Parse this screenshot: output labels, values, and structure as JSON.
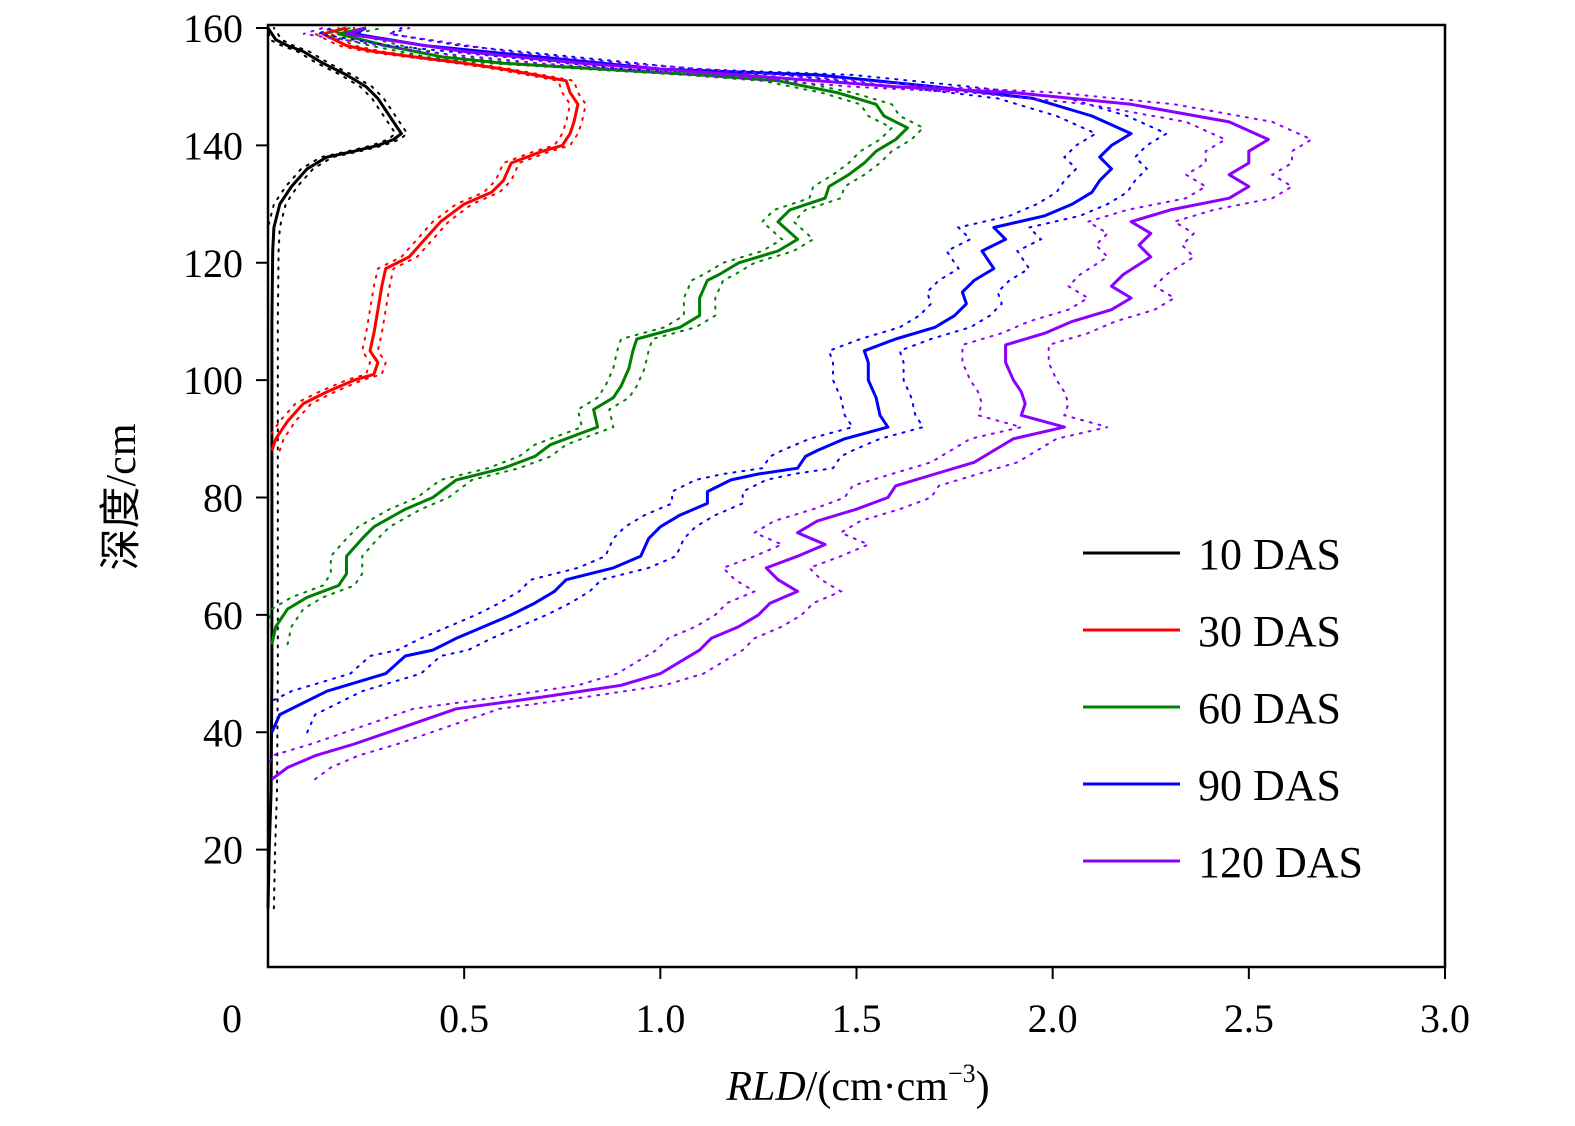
{
  "chart_data": {
    "type": "line",
    "title": "",
    "xlabel": {
      "italic": "RLD",
      "rest": "/(cm·cm",
      "sup": "−3",
      "close": ")"
    },
    "ylabel": "深度/cm",
    "xlim": [
      0,
      3.0
    ],
    "ylim": [
      0,
      160
    ],
    "xticks": [
      0.5,
      1.0,
      1.5,
      2.0,
      2.5,
      3.0
    ],
    "xtick_labels": [
      "0.5",
      "1.0",
      "1.5",
      "2.0",
      "2.5",
      "3.0"
    ],
    "origin_label": "0",
    "yticks": [
      20,
      40,
      60,
      80,
      100,
      120,
      140,
      160
    ],
    "ytick_labels": [
      "20",
      "40",
      "60",
      "80",
      "100",
      "120",
      "140",
      "160"
    ],
    "legend_position": "right",
    "series": [
      {
        "name": "10 DAS",
        "color": "#000000",
        "band": 0.015,
        "points": [
          [
            0,
            10
          ],
          [
            0.003,
            20
          ],
          [
            0.008,
            30
          ],
          [
            0.01,
            50
          ],
          [
            0.01,
            80
          ],
          [
            0.01,
            110
          ],
          [
            0.012,
            122
          ],
          [
            0.015,
            126
          ],
          [
            0.03,
            130
          ],
          [
            0.06,
            133
          ],
          [
            0.1,
            136
          ],
          [
            0.15,
            138
          ],
          [
            0.22,
            139
          ],
          [
            0.28,
            140
          ],
          [
            0.32,
            141
          ],
          [
            0.34,
            142
          ],
          [
            0.32,
            144
          ],
          [
            0.3,
            146
          ],
          [
            0.28,
            148
          ],
          [
            0.25,
            150
          ],
          [
            0.2,
            152
          ],
          [
            0.14,
            154
          ],
          [
            0.09,
            156
          ],
          [
            0.05,
            157
          ],
          [
            0.02,
            158
          ],
          [
            0.0,
            160
          ]
        ]
      },
      {
        "name": "30 DAS",
        "color": "#ff0000",
        "band": 0.02,
        "points": [
          [
            0.01,
            88
          ],
          [
            0.02,
            90
          ],
          [
            0.05,
            93
          ],
          [
            0.09,
            96
          ],
          [
            0.15,
            98
          ],
          [
            0.22,
            100
          ],
          [
            0.27,
            101
          ],
          [
            0.28,
            103
          ],
          [
            0.26,
            105
          ],
          [
            0.27,
            108
          ],
          [
            0.28,
            112
          ],
          [
            0.29,
            116
          ],
          [
            0.3,
            119
          ],
          [
            0.36,
            121
          ],
          [
            0.4,
            124
          ],
          [
            0.44,
            127
          ],
          [
            0.5,
            130
          ],
          [
            0.57,
            132
          ],
          [
            0.6,
            134
          ],
          [
            0.62,
            137
          ],
          [
            0.7,
            139
          ],
          [
            0.75,
            140
          ],
          [
            0.77,
            142
          ],
          [
            0.78,
            144
          ],
          [
            0.79,
            147
          ],
          [
            0.77,
            149
          ],
          [
            0.76,
            151
          ],
          [
            0.68,
            152
          ],
          [
            0.6,
            153
          ],
          [
            0.5,
            154
          ],
          [
            0.38,
            155
          ],
          [
            0.27,
            156
          ],
          [
            0.2,
            157
          ],
          [
            0.14,
            159
          ],
          [
            0.2,
            160
          ]
        ]
      },
      {
        "name": "60 DAS",
        "color": "#008000",
        "band": 0.04,
        "points": [
          [
            0.01,
            55
          ],
          [
            0.02,
            58
          ],
          [
            0.05,
            61
          ],
          [
            0.1,
            63
          ],
          [
            0.18,
            65
          ],
          [
            0.2,
            67
          ],
          [
            0.2,
            70
          ],
          [
            0.24,
            73
          ],
          [
            0.27,
            75
          ],
          [
            0.35,
            78
          ],
          [
            0.42,
            80
          ],
          [
            0.48,
            83
          ],
          [
            0.6,
            85
          ],
          [
            0.68,
            87
          ],
          [
            0.72,
            89
          ],
          [
            0.8,
            91
          ],
          [
            0.84,
            92
          ],
          [
            0.83,
            95
          ],
          [
            0.88,
            97
          ],
          [
            0.9,
            99
          ],
          [
            0.92,
            102
          ],
          [
            0.93,
            105
          ],
          [
            0.94,
            107
          ],
          [
            1.05,
            109
          ],
          [
            1.1,
            111
          ],
          [
            1.1,
            114
          ],
          [
            1.12,
            117
          ],
          [
            1.15,
            118
          ],
          [
            1.2,
            120
          ],
          [
            1.3,
            122
          ],
          [
            1.35,
            124
          ],
          [
            1.3,
            127
          ],
          [
            1.33,
            129
          ],
          [
            1.42,
            131
          ],
          [
            1.43,
            133
          ],
          [
            1.48,
            135
          ],
          [
            1.52,
            137
          ],
          [
            1.55,
            139
          ],
          [
            1.6,
            141
          ],
          [
            1.63,
            143
          ],
          [
            1.57,
            145
          ],
          [
            1.55,
            147
          ],
          [
            1.45,
            149
          ],
          [
            1.3,
            151
          ],
          [
            1.1,
            152
          ],
          [
            0.85,
            153
          ],
          [
            0.6,
            154
          ],
          [
            0.45,
            155
          ],
          [
            0.3,
            157
          ],
          [
            0.18,
            159
          ],
          [
            0.25,
            160
          ]
        ]
      },
      {
        "name": "90 DAS",
        "color": "#0000ff",
        "band": 0.09,
        "points": [
          [
            0.01,
            40
          ],
          [
            0.03,
            43
          ],
          [
            0.09,
            45
          ],
          [
            0.15,
            47
          ],
          [
            0.2,
            48
          ],
          [
            0.3,
            50
          ],
          [
            0.35,
            53
          ],
          [
            0.42,
            54
          ],
          [
            0.48,
            56
          ],
          [
            0.55,
            58
          ],
          [
            0.62,
            60
          ],
          [
            0.68,
            62
          ],
          [
            0.73,
            64
          ],
          [
            0.76,
            66
          ],
          [
            0.88,
            68
          ],
          [
            0.95,
            70
          ],
          [
            0.97,
            73
          ],
          [
            1.0,
            75
          ],
          [
            1.05,
            77
          ],
          [
            1.12,
            79
          ],
          [
            1.12,
            81
          ],
          [
            1.18,
            83
          ],
          [
            1.25,
            84
          ],
          [
            1.35,
            85
          ],
          [
            1.37,
            87
          ],
          [
            1.4,
            88
          ],
          [
            1.47,
            90
          ],
          [
            1.58,
            92
          ],
          [
            1.56,
            94
          ],
          [
            1.55,
            97
          ],
          [
            1.53,
            100
          ],
          [
            1.53,
            103
          ],
          [
            1.52,
            105
          ],
          [
            1.6,
            107
          ],
          [
            1.7,
            109
          ],
          [
            1.75,
            111
          ],
          [
            1.78,
            113
          ],
          [
            1.77,
            115
          ],
          [
            1.8,
            117
          ],
          [
            1.85,
            119
          ],
          [
            1.82,
            122
          ],
          [
            1.88,
            124
          ],
          [
            1.85,
            126
          ],
          [
            1.98,
            128
          ],
          [
            2.05,
            130
          ],
          [
            2.1,
            132
          ],
          [
            2.12,
            134
          ],
          [
            2.15,
            136
          ],
          [
            2.12,
            138
          ],
          [
            2.15,
            140
          ],
          [
            2.2,
            142
          ],
          [
            2.1,
            145
          ],
          [
            1.95,
            148
          ],
          [
            1.7,
            150
          ],
          [
            1.4,
            152
          ],
          [
            1.0,
            153
          ],
          [
            0.7,
            155
          ],
          [
            0.4,
            157
          ],
          [
            0.22,
            159
          ],
          [
            0.25,
            160
          ]
        ]
      },
      {
        "name": "120 DAS",
        "color": "#8b00ff",
        "band": 0.11,
        "points": [
          [
            0.01,
            32
          ],
          [
            0.05,
            34
          ],
          [
            0.12,
            36
          ],
          [
            0.22,
            38
          ],
          [
            0.35,
            41
          ],
          [
            0.48,
            44
          ],
          [
            0.7,
            46
          ],
          [
            0.9,
            48
          ],
          [
            1.0,
            50
          ],
          [
            1.05,
            52
          ],
          [
            1.1,
            54
          ],
          [
            1.13,
            56
          ],
          [
            1.2,
            58
          ],
          [
            1.25,
            60
          ],
          [
            1.28,
            62
          ],
          [
            1.35,
            64
          ],
          [
            1.3,
            66
          ],
          [
            1.27,
            68
          ],
          [
            1.35,
            70
          ],
          [
            1.42,
            72
          ],
          [
            1.35,
            74
          ],
          [
            1.4,
            76
          ],
          [
            1.5,
            78
          ],
          [
            1.58,
            80
          ],
          [
            1.6,
            82
          ],
          [
            1.7,
            84
          ],
          [
            1.8,
            86
          ],
          [
            1.85,
            88
          ],
          [
            1.9,
            90
          ],
          [
            2.03,
            92
          ],
          [
            1.92,
            94
          ],
          [
            1.93,
            96
          ],
          [
            1.92,
            98
          ],
          [
            1.9,
            100
          ],
          [
            1.88,
            103
          ],
          [
            1.88,
            106
          ],
          [
            1.98,
            108
          ],
          [
            2.05,
            110
          ],
          [
            2.15,
            112
          ],
          [
            2.2,
            114
          ],
          [
            2.15,
            116
          ],
          [
            2.18,
            118
          ],
          [
            2.25,
            121
          ],
          [
            2.22,
            123
          ],
          [
            2.25,
            125
          ],
          [
            2.2,
            127
          ],
          [
            2.3,
            129
          ],
          [
            2.45,
            131
          ],
          [
            2.5,
            133
          ],
          [
            2.45,
            135
          ],
          [
            2.5,
            137
          ],
          [
            2.5,
            139
          ],
          [
            2.55,
            141
          ],
          [
            2.45,
            144
          ],
          [
            2.2,
            147
          ],
          [
            1.9,
            149
          ],
          [
            1.6,
            150
          ],
          [
            1.2,
            152
          ],
          [
            0.8,
            154
          ],
          [
            0.5,
            156
          ],
          [
            0.3,
            158
          ],
          [
            0.2,
            159
          ],
          [
            0.25,
            160
          ]
        ]
      }
    ]
  }
}
